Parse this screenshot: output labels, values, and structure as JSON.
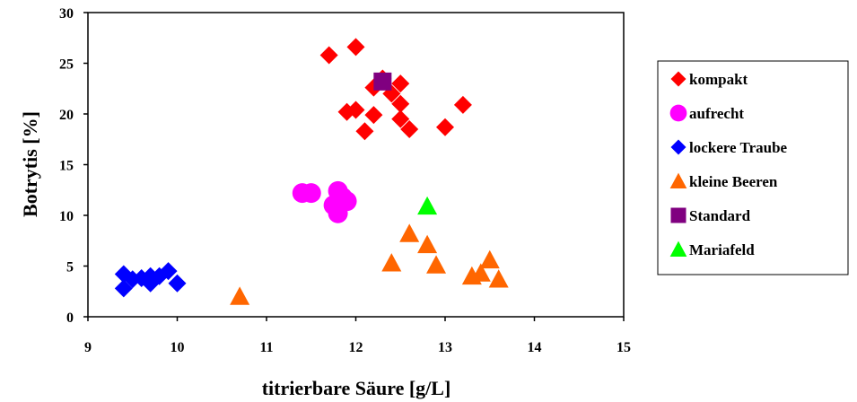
{
  "chart_data": {
    "type": "scatter",
    "xlabel": "titrierbare Säure [g/L]",
    "ylabel": "Botrytis [%]",
    "xlim": [
      9,
      15
    ],
    "ylim": [
      0,
      30
    ],
    "x_ticks": [
      "9",
      "10",
      "11",
      "12",
      "13",
      "14",
      "15"
    ],
    "y_ticks": [
      "0",
      "5",
      "10",
      "15",
      "20",
      "25",
      "30"
    ],
    "grid": false,
    "legend_position": "right",
    "series": [
      {
        "name": "kompakt",
        "marker": "diamond",
        "color": "#ff0000",
        "points": [
          [
            11.7,
            25.8
          ],
          [
            12.0,
            26.6
          ],
          [
            12.3,
            23.5
          ],
          [
            12.2,
            22.6
          ],
          [
            12.5,
            23.0
          ],
          [
            12.5,
            21.0
          ],
          [
            12.4,
            22.0
          ],
          [
            11.9,
            20.2
          ],
          [
            12.0,
            20.4
          ],
          [
            12.2,
            19.9
          ],
          [
            12.5,
            19.5
          ],
          [
            12.6,
            18.5
          ],
          [
            12.1,
            18.3
          ],
          [
            13.0,
            18.7
          ],
          [
            13.2,
            20.9
          ]
        ]
      },
      {
        "name": "aufrecht",
        "marker": "circle",
        "color": "#ff00ff",
        "points": [
          [
            11.4,
            12.2
          ],
          [
            11.5,
            12.2
          ],
          [
            11.8,
            12.4
          ],
          [
            11.75,
            11.0
          ],
          [
            11.9,
            11.4
          ],
          [
            11.8,
            10.2
          ],
          [
            11.85,
            11.8
          ]
        ]
      },
      {
        "name": "lockere Traube",
        "marker": "diamond",
        "color": "#0000ff",
        "points": [
          [
            9.4,
            4.2
          ],
          [
            9.5,
            3.7
          ],
          [
            9.6,
            3.8
          ],
          [
            9.7,
            4.0
          ],
          [
            9.9,
            4.5
          ],
          [
            9.7,
            3.3
          ],
          [
            10.0,
            3.3
          ],
          [
            9.4,
            2.8
          ],
          [
            9.8,
            4.0
          ]
        ]
      },
      {
        "name": "kleine Beeren",
        "marker": "triangle",
        "color": "#ff6600",
        "points": [
          [
            10.7,
            2.0
          ],
          [
            12.4,
            5.3
          ],
          [
            12.6,
            8.2
          ],
          [
            12.8,
            7.1
          ],
          [
            12.9,
            5.1
          ],
          [
            13.3,
            4.0
          ],
          [
            13.4,
            4.3
          ],
          [
            13.5,
            5.6
          ],
          [
            13.6,
            3.7
          ]
        ]
      },
      {
        "name": "Standard",
        "marker": "square",
        "color": "#800080",
        "points": [
          [
            12.3,
            23.2
          ]
        ]
      },
      {
        "name": "Mariafeld",
        "marker": "triangle",
        "color": "#00ff00",
        "points": [
          [
            12.8,
            10.9
          ]
        ]
      }
    ]
  }
}
